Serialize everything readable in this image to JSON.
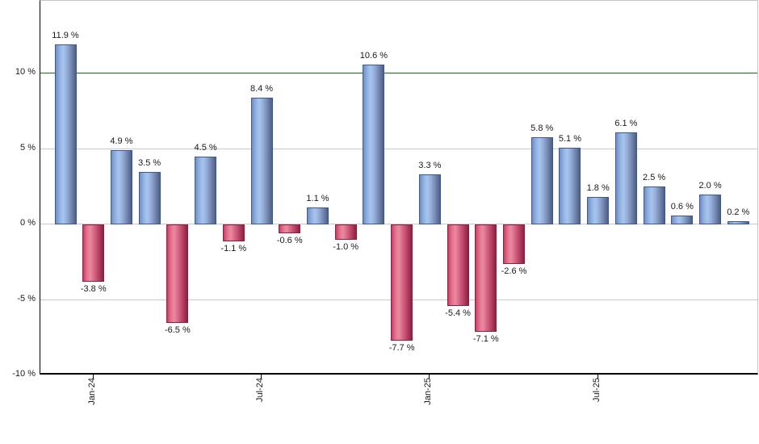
{
  "chart_data": {
    "type": "bar",
    "title": "",
    "xlabel": "",
    "ylabel": "",
    "ylim": [
      -10,
      14.8
    ],
    "grid": true,
    "legend": null,
    "y_ticks": [
      {
        "value": 10,
        "label": "10 %"
      },
      {
        "value": 5,
        "label": "5 %"
      },
      {
        "value": 0,
        "label": "0 %"
      },
      {
        "value": -5,
        "label": "-5 %"
      },
      {
        "value": -10,
        "label": "-10 %"
      }
    ],
    "gridline_values": [
      5,
      0,
      -5
    ],
    "reference_line": {
      "value": 10,
      "color": "#007a00"
    },
    "x_ticks": [
      {
        "bar_index": 1,
        "label": "Jan-24"
      },
      {
        "bar_index": 7,
        "label": "Jul-24"
      },
      {
        "bar_index": 13,
        "label": "Jan-25"
      },
      {
        "bar_index": 19,
        "label": "Jul-25"
      }
    ],
    "bars": [
      {
        "value": 11.9,
        "label": "11.9 %"
      },
      {
        "value": -3.8,
        "label": "-3.8 %"
      },
      {
        "value": 4.9,
        "label": "4.9 %"
      },
      {
        "value": 3.5,
        "label": "3.5 %"
      },
      {
        "value": -6.5,
        "label": "-6.5 %"
      },
      {
        "value": 4.5,
        "label": "4.5 %"
      },
      {
        "value": -1.1,
        "label": "-1.1 %"
      },
      {
        "value": 8.4,
        "label": "8.4 %"
      },
      {
        "value": -0.6,
        "label": "-0.6 %"
      },
      {
        "value": 1.1,
        "label": "1.1 %"
      },
      {
        "value": -1.0,
        "label": "-1.0 %"
      },
      {
        "value": 10.6,
        "label": "10.6 %"
      },
      {
        "value": -7.7,
        "label": "-7.7 %"
      },
      {
        "value": 3.3,
        "label": "3.3 %"
      },
      {
        "value": -5.4,
        "label": "-5.4 %"
      },
      {
        "value": -7.1,
        "label": "-7.1 %"
      },
      {
        "value": -2.6,
        "label": "-2.6 %"
      },
      {
        "value": 5.8,
        "label": "5.8 %"
      },
      {
        "value": 5.1,
        "label": "5.1 %"
      },
      {
        "value": 1.8,
        "label": "1.8 %"
      },
      {
        "value": 6.1,
        "label": "6.1 %"
      },
      {
        "value": 2.5,
        "label": "2.5 %"
      },
      {
        "value": 0.6,
        "label": "0.6 %"
      },
      {
        "value": 2.0,
        "label": "2.0 %"
      },
      {
        "value": 0.2,
        "label": "0.2 %"
      }
    ],
    "colors": {
      "positive_bar": "#88a7dd",
      "positive_border": "#3c5a8f",
      "negative_bar": "#cc3f66",
      "negative_border": "#8e1e3e",
      "reference_line": "#007a00",
      "gridline": "#c8c8c8",
      "axis": "#000000",
      "label_text": "#1a1a1a"
    }
  }
}
